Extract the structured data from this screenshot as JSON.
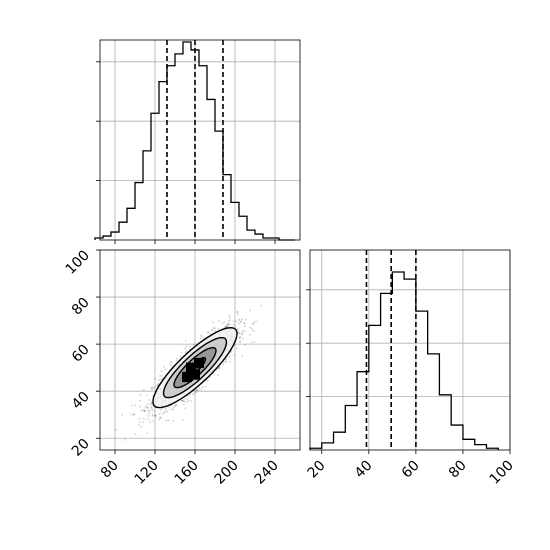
{
  "chart_data": [
    {
      "type": "histogram",
      "panel": "marginal-x",
      "bin_edges": [
        60,
        68,
        76,
        84,
        92,
        100,
        108,
        116,
        124,
        132,
        140,
        148,
        156,
        164,
        172,
        180,
        188,
        196,
        204,
        212,
        220,
        228,
        236,
        244,
        252,
        260
      ],
      "counts": [
        0.01,
        0.02,
        0.04,
        0.09,
        0.16,
        0.29,
        0.45,
        0.64,
        0.8,
        0.88,
        0.94,
        1.0,
        0.96,
        0.88,
        0.71,
        0.55,
        0.33,
        0.19,
        0.12,
        0.05,
        0.03,
        0.01,
        0.01,
        0.0,
        0.0
      ],
      "quantile_lines": [
        132,
        160,
        188
      ],
      "xlim": [
        65,
        265
      ],
      "line_style": "step",
      "grid": true
    },
    {
      "type": "histogram",
      "panel": "marginal-y",
      "bin_edges": [
        15,
        20,
        25,
        30,
        35,
        40,
        45,
        50,
        55,
        60,
        65,
        70,
        75,
        80,
        85,
        90,
        95
      ],
      "counts": [
        0.01,
        0.04,
        0.1,
        0.25,
        0.44,
        0.7,
        0.88,
        1.0,
        0.96,
        0.78,
        0.54,
        0.31,
        0.14,
        0.06,
        0.03,
        0.01
      ],
      "quantile_lines": [
        39,
        49.5,
        60
      ],
      "xlim": [
        15,
        100
      ],
      "x_ticks": [
        "20",
        "40",
        "60",
        "80",
        "100"
      ],
      "line_style": "step",
      "grid": true
    },
    {
      "type": "scatter",
      "panel": "joint",
      "x_mean": 160,
      "y_mean": 50,
      "x_std": 21,
      "y_std": 8.5,
      "correlation": 0.85,
      "n_points": 1800,
      "xlim": [
        65,
        265
      ],
      "ylim": [
        15,
        100
      ],
      "x_ticks": [
        "80",
        "120",
        "160",
        "200",
        "240"
      ],
      "y_ticks": [
        "20",
        "40",
        "60",
        "80",
        "100"
      ],
      "contour_levels_sigma": [
        0.5,
        1.0,
        1.5,
        2.0
      ],
      "grid": true
    }
  ],
  "colors": {
    "line": "#000000",
    "grid": "#b0b0b0",
    "points": "#000000",
    "background": "#ffffff"
  }
}
